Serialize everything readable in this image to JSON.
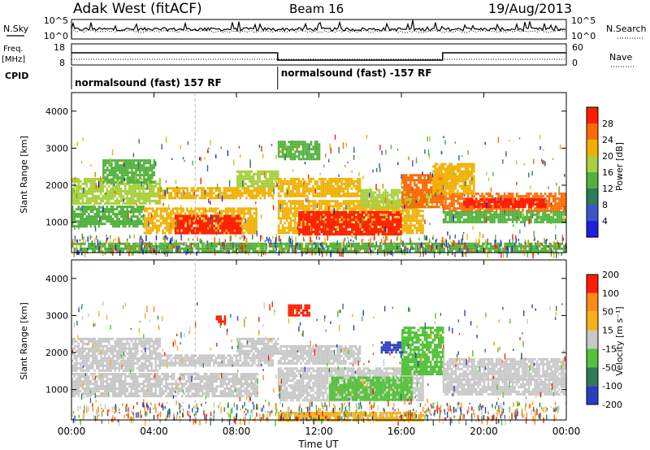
{
  "header": {
    "radar": "Adak West (fitACF)",
    "beam": "Beam 16",
    "date": "19/Aug/2013"
  },
  "strip": {
    "nsky_label": "N.Sky",
    "nsky_ticks": [
      "10^5",
      "10^0"
    ],
    "nsearch_label": "N.Search",
    "nsearch_ticks": [
      "10^5",
      "10^0"
    ],
    "freq_label_line1": "Freq.",
    "freq_label_line2": "[MHz]",
    "freq_ticks": [
      "18",
      "8"
    ],
    "nave_label": "Nave",
    "nave_ticks": [
      "60",
      "0"
    ],
    "cpid_label": "CPID",
    "cpid_segments": [
      {
        "start_hour": 0,
        "end_hour": 10,
        "text": "normalsound (fast) 157 RF"
      },
      {
        "start_hour": 10,
        "end_hour": 24,
        "text": "normalsound (fast) -157 RF"
      }
    ],
    "nave_steps": [
      {
        "start_hour": 0,
        "end_hour": 10,
        "level": "high"
      },
      {
        "start_hour": 10,
        "end_hour": 18,
        "level": "low"
      },
      {
        "start_hour": 18,
        "end_hour": 24,
        "level": "high"
      }
    ]
  },
  "chart_data": [
    {
      "type": "heatmap",
      "name": "Power",
      "ylabel": "Slant Range [km]",
      "ylim": [
        180,
        4500
      ],
      "yticks": [
        "1000",
        "2000",
        "3000",
        "4000"
      ],
      "colorbar_label": "Power [dB]",
      "colorbar_ticks": [
        "4",
        "8",
        "12",
        "16",
        "20",
        "24",
        "28"
      ],
      "colorbar_colors": [
        "#1f1fe0",
        "#3a56c8",
        "#2f7a5a",
        "#52b23c",
        "#a8d040",
        "#f0b000",
        "#ff6a00",
        "#ff1d00"
      ],
      "xlim_hours": [
        0,
        24
      ],
      "regions": [
        {
          "x0": 0.0,
          "x1": 4.3,
          "r0": 1500,
          "r1": 2200,
          "level": 4
        },
        {
          "x0": 1.5,
          "x1": 4.0,
          "r0": 2100,
          "r1": 2700,
          "level": 3
        },
        {
          "x0": 4.2,
          "x1": 9.8,
          "r0": 1650,
          "r1": 1950,
          "level": 5
        },
        {
          "x0": 8.0,
          "x1": 10.0,
          "r0": 1950,
          "r1": 2400,
          "level": 4
        },
        {
          "x0": 0.0,
          "x1": 3.5,
          "r0": 900,
          "r1": 1450,
          "level": 3
        },
        {
          "x0": 3.5,
          "x1": 9.0,
          "r0": 700,
          "r1": 1400,
          "level": 5
        },
        {
          "x0": 5.0,
          "x1": 8.2,
          "r0": 700,
          "r1": 1200,
          "level": 7
        },
        {
          "x0": 10.0,
          "x1": 17.0,
          "r0": 700,
          "r1": 1600,
          "level": 5
        },
        {
          "x0": 11.0,
          "x1": 16.0,
          "r0": 700,
          "r1": 1300,
          "level": 7
        },
        {
          "x0": 10.0,
          "x1": 14.0,
          "r0": 1700,
          "r1": 2200,
          "level": 5
        },
        {
          "x0": 14.0,
          "x1": 17.5,
          "r0": 1400,
          "r1": 1900,
          "level": 4
        },
        {
          "x0": 10.0,
          "x1": 12.0,
          "r0": 2700,
          "r1": 3200,
          "level": 3
        },
        {
          "x0": 16.0,
          "x1": 18.0,
          "r0": 1400,
          "r1": 2300,
          "level": 6
        },
        {
          "x0": 18.0,
          "x1": 24.0,
          "r0": 1300,
          "r1": 1800,
          "level": 6
        },
        {
          "x0": 19.0,
          "x1": 23.0,
          "r0": 1450,
          "r1": 1650,
          "level": 7
        },
        {
          "x0": 18.0,
          "x1": 24.0,
          "r0": 1000,
          "r1": 1300,
          "level": 3
        },
        {
          "x0": 17.5,
          "x1": 19.5,
          "r0": 1800,
          "r1": 2600,
          "level": 5
        },
        {
          "x0": 0.0,
          "x1": 24.0,
          "r0": 200,
          "r1": 450,
          "level": 3
        }
      ]
    },
    {
      "type": "heatmap",
      "name": "Velocity",
      "ylabel": "Slant Range [km]",
      "ylim": [
        180,
        4500
      ],
      "yticks": [
        "1000",
        "2000",
        "3000",
        "4000"
      ],
      "colorbar_label": "Velocity [m s⁻¹]",
      "colorbar_ticks": [
        "200",
        "100",
        "50",
        "15",
        "-15",
        "-50",
        "-100",
        "-200"
      ],
      "colorbar_colors": [
        "#2a3fc0",
        "#2f7a5a",
        "#52c238",
        "#c8c8c8",
        "#f3b21a",
        "#ff8a1a",
        "#ff1d00"
      ],
      "xlim_hours": [
        0,
        24
      ],
      "xticks": [
        "00:00",
        "04:00",
        "08:00",
        "12:00",
        "16:00",
        "20:00",
        "00:00"
      ],
      "xlabel": "Time UT",
      "regions": [
        {
          "x0": 0.0,
          "x1": 4.3,
          "r0": 1500,
          "r1": 2400,
          "level": 3
        },
        {
          "x0": 4.2,
          "x1": 9.8,
          "r0": 1650,
          "r1": 1950,
          "level": 3
        },
        {
          "x0": 0.0,
          "x1": 9.0,
          "r0": 800,
          "r1": 1450,
          "level": 3
        },
        {
          "x0": 8.0,
          "x1": 10.0,
          "r0": 1950,
          "r1": 2400,
          "level": 3
        },
        {
          "x0": 10.0,
          "x1": 14.0,
          "r0": 1700,
          "r1": 2200,
          "level": 3
        },
        {
          "x0": 10.0,
          "x1": 17.0,
          "r0": 700,
          "r1": 1600,
          "level": 3
        },
        {
          "x0": 12.5,
          "x1": 16.5,
          "r0": 700,
          "r1": 1350,
          "level": 2
        },
        {
          "x0": 15.0,
          "x1": 16.2,
          "r0": 2000,
          "r1": 2300,
          "level": 0
        },
        {
          "x0": 16.0,
          "x1": 18.0,
          "r0": 1400,
          "r1": 2700,
          "level": 2
        },
        {
          "x0": 18.0,
          "x1": 24.0,
          "r0": 1300,
          "r1": 1850,
          "level": 3
        },
        {
          "x0": 18.0,
          "x1": 24.0,
          "r0": 900,
          "r1": 1300,
          "level": 3
        },
        {
          "x0": 10.5,
          "x1": 11.5,
          "r0": 3000,
          "r1": 3300,
          "level": 6
        },
        {
          "x0": 7.0,
          "x1": 7.4,
          "r0": 2800,
          "r1": 3000,
          "level": 6
        },
        {
          "x0": 10.0,
          "x1": 17.0,
          "r0": 200,
          "r1": 400,
          "level": 4
        }
      ]
    }
  ]
}
